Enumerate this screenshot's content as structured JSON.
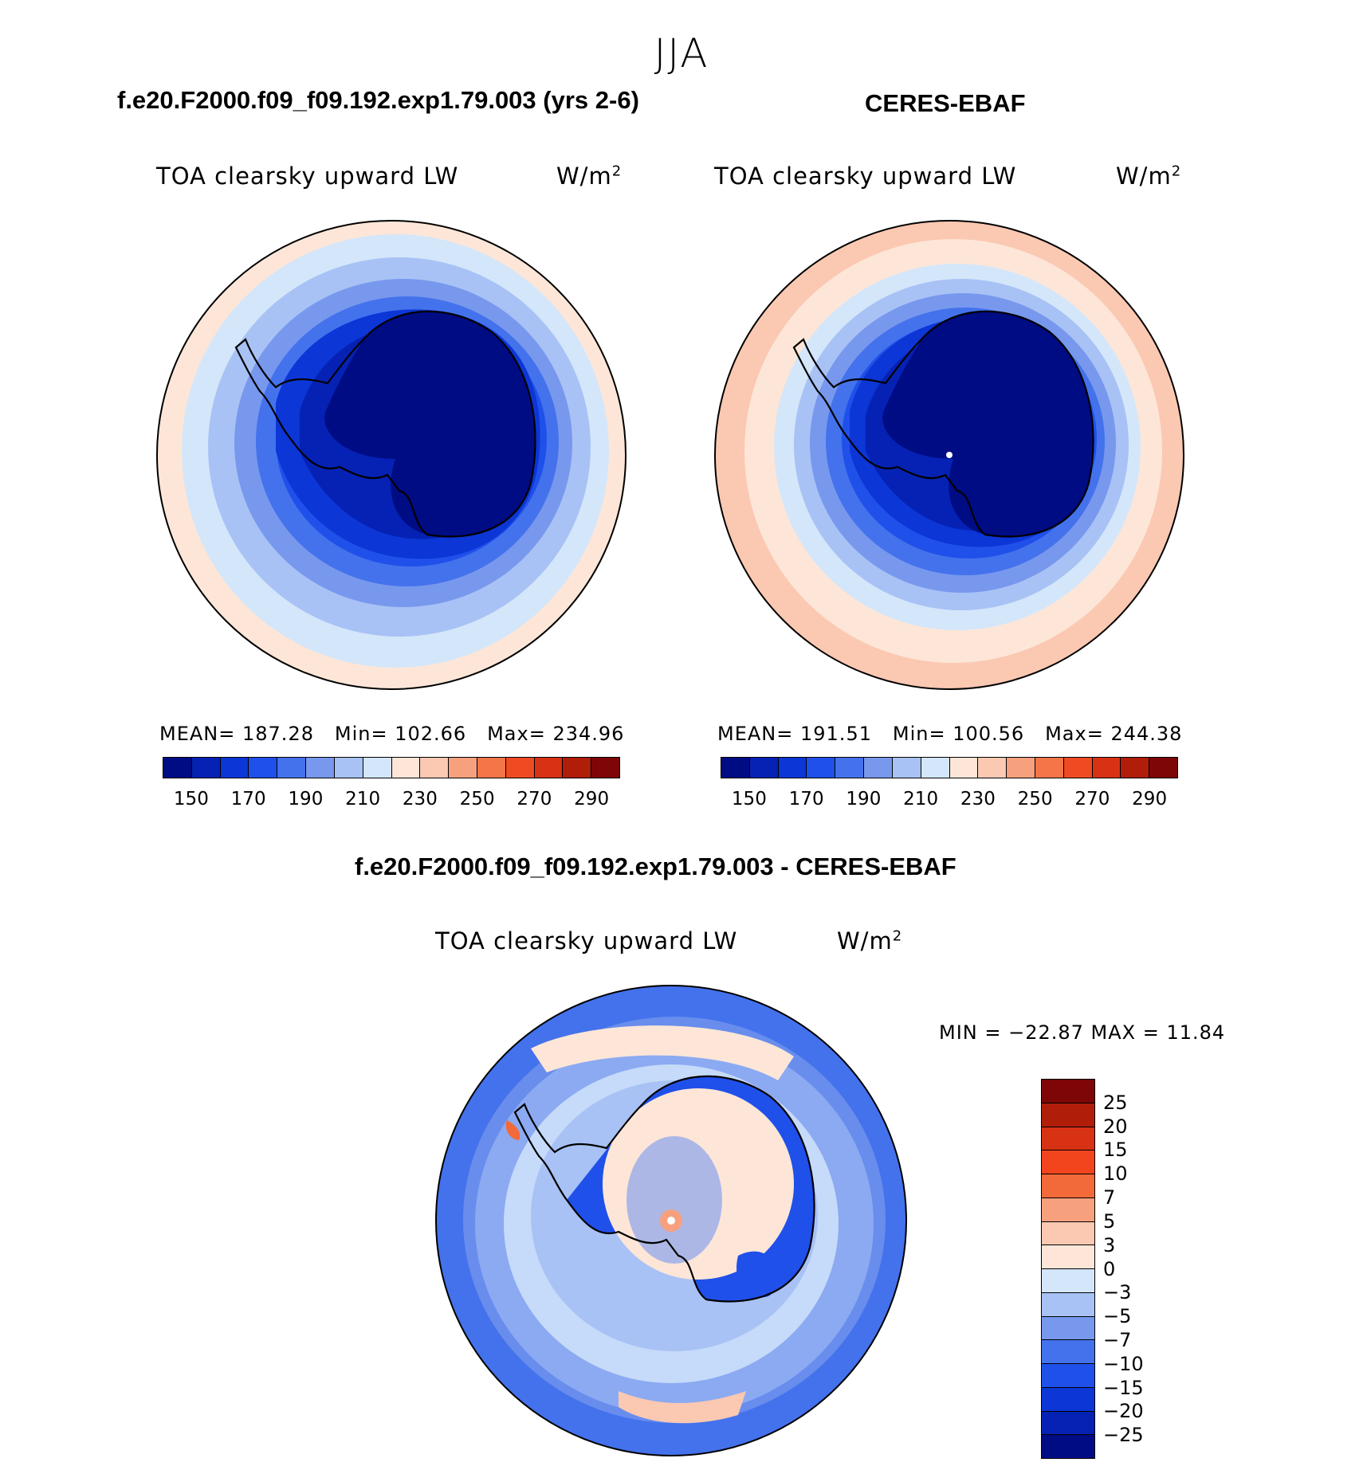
{
  "season": "JJA",
  "panels": {
    "model": {
      "title": "f.e20.F2000.f09_f09.192.exp1.79.003 (yrs 2-6)",
      "variable": "TOA clearsky upward LW",
      "units": "W/m",
      "units_sup": "2",
      "mean_label": "MEAN=",
      "mean": "187.28",
      "min_label": "Min=",
      "min": "102.66",
      "max_label": "Max=",
      "max": "234.96"
    },
    "obs": {
      "title": "CERES-EBAF",
      "variable": "TOA clearsky upward LW",
      "units": "W/m",
      "units_sup": "2",
      "mean_label": "MEAN=",
      "mean": "191.51",
      "min_label": "Min=",
      "min": "100.56",
      "max_label": "Max=",
      "max": "244.38"
    },
    "diff": {
      "title": "f.e20.F2000.f09_f09.192.exp1.79.003 - CERES-EBAF",
      "variable": "TOA clearsky upward LW",
      "units": "W/m",
      "units_sup": "2",
      "minmax": "MIN = −22.87 MAX =   11.84"
    }
  },
  "abs_colorbar": {
    "colors": [
      "#000c84",
      "#0522b4",
      "#0c36d6",
      "#2050ea",
      "#4472ec",
      "#7898ee",
      "#a8c2f5",
      "#d4e6fa",
      "#fde6d8",
      "#fbc8b2",
      "#f6a07e",
      "#f37548",
      "#ef4b22",
      "#d83214",
      "#b01e0a",
      "#7e0606"
    ],
    "tick_labels": [
      "150",
      "170",
      "190",
      "210",
      "230",
      "250",
      "270",
      "290"
    ]
  },
  "diff_colorbar": {
    "colors_top_to_bottom": [
      "#7e0606",
      "#b01e0a",
      "#d83214",
      "#f2451e",
      "#f26a3a",
      "#f6a07e",
      "#fbc8b2",
      "#fde6d8",
      "#d4e6fa",
      "#a8c2f5",
      "#7898ee",
      "#4472ec",
      "#2050ea",
      "#0c36d6",
      "#0522b4",
      "#000c84"
    ],
    "tick_labels": [
      "25",
      "20",
      "15",
      "10",
      "7",
      "5",
      "3",
      "0",
      "−3",
      "−5",
      "−7",
      "−10",
      "−15",
      "−20",
      "−25"
    ]
  }
}
